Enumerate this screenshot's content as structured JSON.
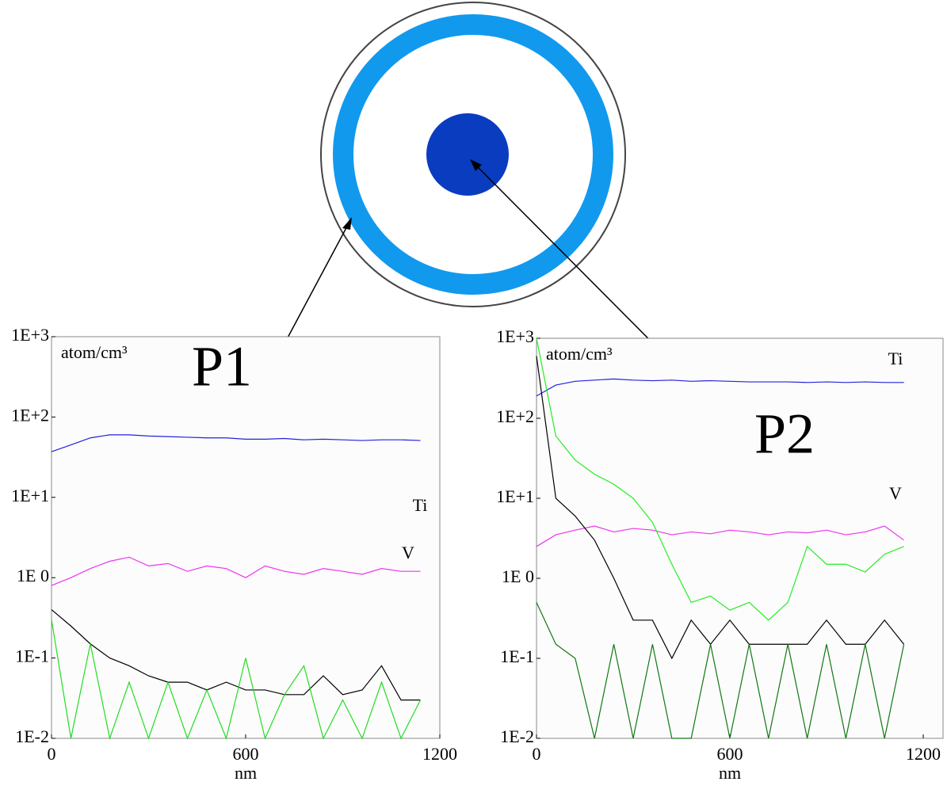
{
  "chart_data": [
    {
      "type": "line",
      "log_scale": true,
      "grid": false,
      "point_label": "P1",
      "ylabel": "atom/cm³",
      "xlabel": "nm",
      "xlim": [
        0,
        1200
      ],
      "xticks": [
        0,
        600,
        1200
      ],
      "ylim": [
        0.01,
        1000
      ],
      "yticks": [
        {
          "value": 0.01,
          "label": "1E-2"
        },
        {
          "value": 0.1,
          "label": "1E-1"
        },
        {
          "value": 1,
          "label": "1E 0"
        },
        {
          "value": 10,
          "label": "1E+1"
        },
        {
          "value": 100,
          "label": "1E+2"
        },
        {
          "value": 1000,
          "label": "1E+3"
        }
      ],
      "x": [
        0,
        60,
        120,
        180,
        240,
        300,
        360,
        420,
        480,
        540,
        600,
        660,
        720,
        780,
        840,
        900,
        960,
        1020,
        1080,
        1140
      ],
      "series": [
        {
          "name": "Ti",
          "color": "#2222dd",
          "values": [
            37,
            45,
            55,
            60,
            60,
            58,
            57,
            56,
            55,
            55,
            53,
            53,
            54,
            52,
            53,
            52,
            51,
            52,
            52,
            51
          ]
        },
        {
          "name": "V",
          "color": "#ee33ee",
          "values": [
            0.8,
            1.0,
            1.3,
            1.6,
            1.8,
            1.4,
            1.5,
            1.2,
            1.4,
            1.3,
            1.0,
            1.4,
            1.2,
            1.1,
            1.3,
            1.2,
            1.1,
            1.3,
            1.2,
            1.2
          ]
        },
        {
          "color": "#000000",
          "values": [
            0.4,
            0.25,
            0.15,
            0.1,
            0.08,
            0.06,
            0.05,
            0.05,
            0.04,
            0.05,
            0.04,
            0.04,
            0.035,
            0.035,
            0.06,
            0.035,
            0.04,
            0.08,
            0.03,
            0.03
          ]
        },
        {
          "color": "#22dd22",
          "values": [
            0.3,
            0.01,
            0.15,
            0.01,
            0.05,
            0.01,
            0.05,
            0.01,
            0.04,
            0.01,
            0.1,
            0.01,
            0.035,
            0.08,
            0.01,
            0.03,
            0.01,
            0.05,
            0.01,
            0.03
          ]
        }
      ]
    },
    {
      "type": "line",
      "log_scale": true,
      "grid": false,
      "point_label": "P2",
      "ylabel": "atom/cm³",
      "xlabel": "nm",
      "xlim": [
        0,
        1200
      ],
      "xticks": [
        0,
        600,
        1200
      ],
      "ylim": [
        0.01,
        1000
      ],
      "yticks": [
        {
          "value": 0.01,
          "label": "1E-2"
        },
        {
          "value": 0.1,
          "label": "1E-1"
        },
        {
          "value": 1,
          "label": "1E 0"
        },
        {
          "value": 10,
          "label": "1E+1"
        },
        {
          "value": 100,
          "label": "1E+2"
        },
        {
          "value": 1000,
          "label": "1E+3"
        }
      ],
      "x": [
        0,
        60,
        120,
        180,
        240,
        300,
        360,
        420,
        480,
        540,
        600,
        660,
        720,
        780,
        840,
        900,
        960,
        1020,
        1080,
        1140
      ],
      "series": [
        {
          "name": "Ti",
          "color": "#2222dd",
          "values": [
            190,
            260,
            290,
            300,
            310,
            300,
            295,
            300,
            290,
            295,
            290,
            285,
            285,
            285,
            280,
            285,
            280,
            285,
            280,
            280
          ]
        },
        {
          "name": "V",
          "color": "#ee33ee",
          "values": [
            2.5,
            3.5,
            4,
            4.5,
            3.8,
            4.2,
            4,
            3.5,
            3.8,
            3.6,
            4,
            3.8,
            3.5,
            3.8,
            3.7,
            4,
            3.5,
            3.8,
            4.5,
            3
          ]
        },
        {
          "color": "#22ee22",
          "values": [
            1000,
            60,
            30,
            20,
            15,
            10,
            5,
            1.5,
            0.5,
            0.6,
            0.4,
            0.5,
            0.3,
            0.5,
            2.5,
            1.5,
            1.5,
            1.2,
            2,
            2.5
          ]
        },
        {
          "color": "#000000",
          "values": [
            600,
            10,
            6,
            3,
            1,
            0.3,
            0.3,
            0.1,
            0.3,
            0.15,
            0.3,
            0.15,
            0.15,
            0.15,
            0.15,
            0.3,
            0.15,
            0.15,
            0.3,
            0.15
          ]
        },
        {
          "color": "#117711",
          "values": [
            0.5,
            0.15,
            0.1,
            0.01,
            0.15,
            0.01,
            0.15,
            0.01,
            0.01,
            0.15,
            0.01,
            0.15,
            0.01,
            0.15,
            0.01,
            0.15,
            0.01,
            0.15,
            0.01,
            0.15
          ]
        }
      ]
    }
  ]
}
